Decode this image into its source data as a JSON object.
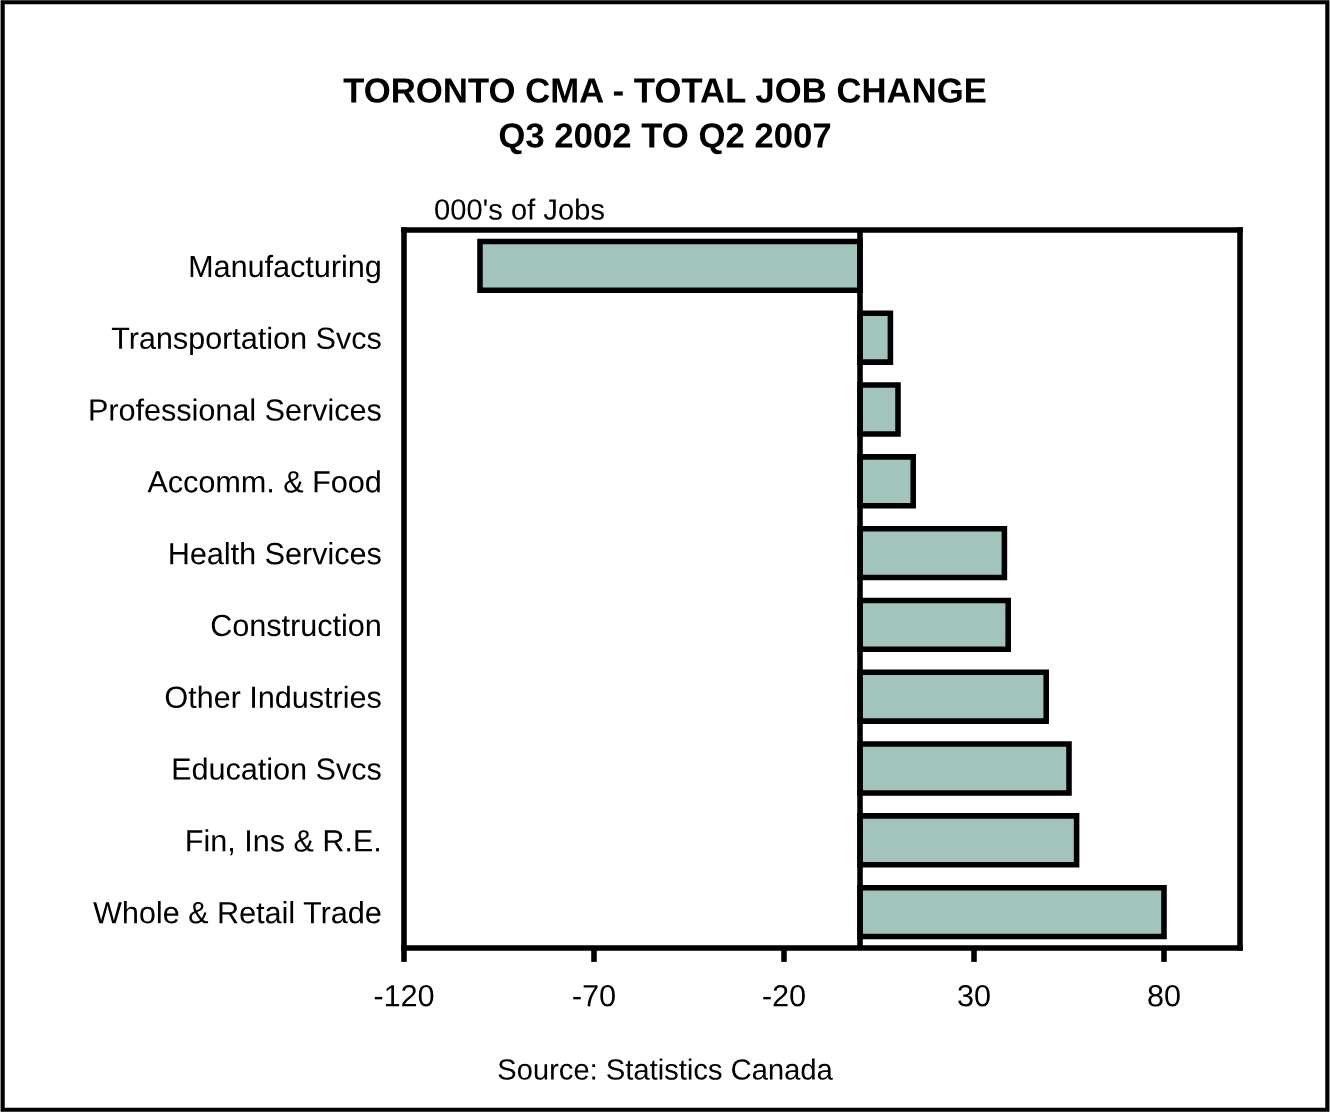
{
  "chart_data": {
    "type": "bar",
    "orientation": "horizontal",
    "title": "TORONTO CMA - TOTAL JOB CHANGE\nQ3 2002 TO Q2 2007",
    "categories": [
      "Manufacturing",
      "Transportation Svcs",
      "Professional Services",
      "Accomm. & Food",
      "Health Services",
      "Construction",
      "Other Industries",
      "Education Svcs",
      "Fin, Ins & R.E.",
      "Whole & Retail Trade"
    ],
    "values": [
      -100,
      8,
      10,
      14,
      38,
      39,
      49,
      55,
      57,
      80
    ],
    "color": "#a3c4bc",
    "xlim": [
      -120,
      100
    ],
    "xticks": [
      -120,
      -70,
      -20,
      30,
      80
    ],
    "grid": false,
    "legend": false,
    "annotations": [
      "000's of Jobs",
      "Source: Statistics Canada"
    ]
  }
}
